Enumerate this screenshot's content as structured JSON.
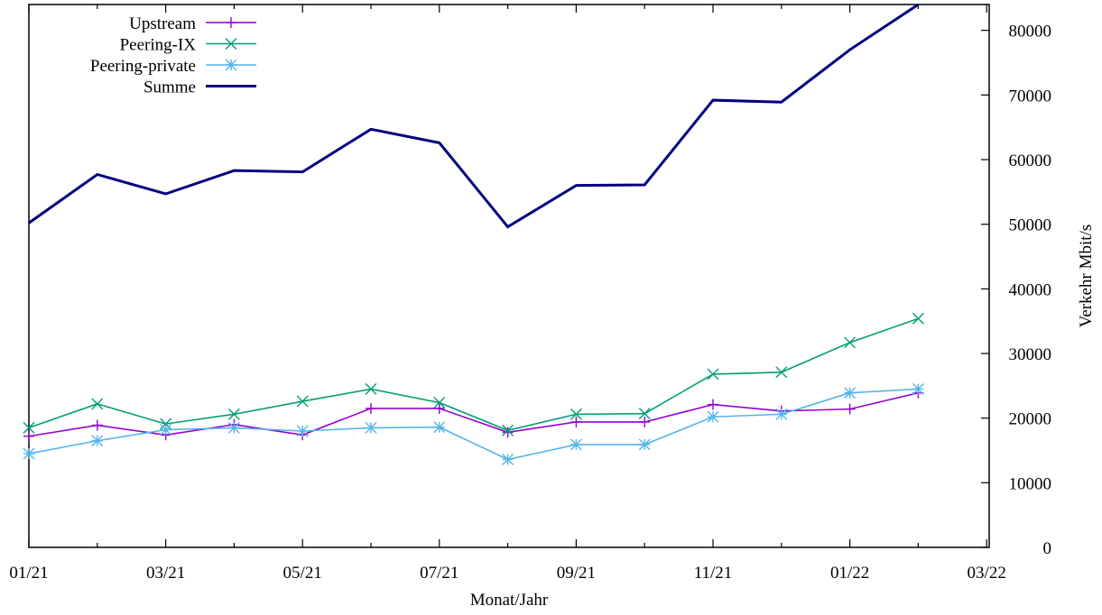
{
  "chart_data": {
    "type": "line",
    "xlabel": "Monat/Jahr",
    "ylabel": "Verkehr Mbit/s",
    "x": [
      "01/21",
      "02/21",
      "03/21",
      "04/21",
      "05/21",
      "06/21",
      "07/21",
      "08/21",
      "09/21",
      "10/21",
      "11/21",
      "12/21",
      "01/22",
      "02/22"
    ],
    "x_ticks": [
      "01/21",
      "03/21",
      "05/21",
      "07/21",
      "09/21",
      "11/21",
      "01/22",
      "03/22"
    ],
    "y_ticks": [
      0,
      10000,
      20000,
      30000,
      40000,
      50000,
      60000,
      70000,
      80000
    ],
    "ylim": [
      0,
      84000
    ],
    "y_axis_side": "right",
    "legend_position": "top-left",
    "grid": false,
    "series": [
      {
        "name": "Upstream",
        "color": "#9400d3",
        "marker": "plus",
        "values": [
          17200,
          18900,
          17400,
          19000,
          17400,
          21500,
          21500,
          17800,
          19400,
          19400,
          22100,
          21100,
          21400,
          23900
        ]
      },
      {
        "name": "Peering-IX",
        "color": "#009e73",
        "marker": "cross",
        "values": [
          18500,
          22200,
          19100,
          20600,
          22600,
          24500,
          22400,
          18100,
          20600,
          20700,
          26800,
          27100,
          31700,
          35400
        ]
      },
      {
        "name": "Peering-private",
        "color": "#56b4e9",
        "marker": "star",
        "values": [
          14500,
          16500,
          18200,
          18500,
          18000,
          18500,
          18600,
          13600,
          15900,
          15900,
          20200,
          20600,
          23900,
          24500
        ]
      },
      {
        "name": "Summe",
        "color": "#000080",
        "marker": "none",
        "values": [
          50200,
          57700,
          54700,
          58300,
          58100,
          64700,
          62600,
          49600,
          56000,
          56100,
          69200,
          68900,
          77000,
          84000
        ]
      }
    ]
  }
}
